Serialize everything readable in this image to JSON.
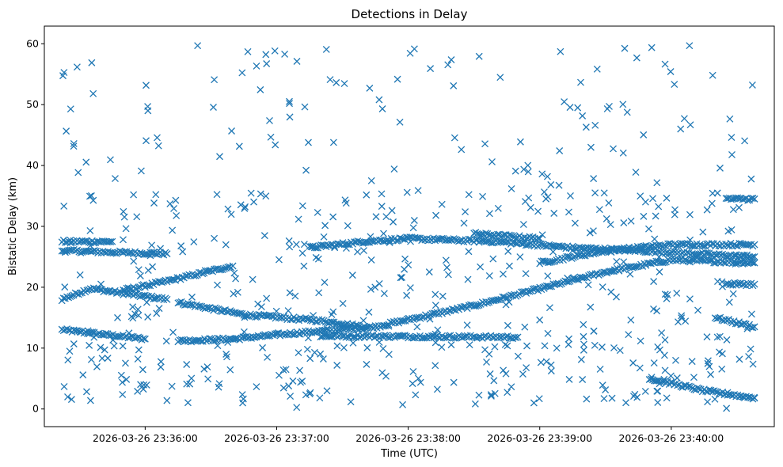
{
  "chart_data": {
    "type": "scatter",
    "title": "Detections in Delay",
    "xlabel": "Time (UTC)",
    "ylabel": "Bistatic Delay (km)",
    "marker": "x",
    "color": "#1f77b4",
    "grid": false,
    "legend": "none",
    "x_start": "2026-03-26 23:35:22",
    "x_end": "2026-03-26 23:40:38",
    "xlim": [
      "2026-03-26 23:35:14",
      "2026-03-26 23:40:47"
    ],
    "ylim": [
      -2.9,
      62.9
    ],
    "x_ticks": [
      {
        "time": "2026-03-26 23:36:00",
        "label": "2026-03-26 23:36:00"
      },
      {
        "time": "2026-03-26 23:37:00",
        "label": "2026-03-26 23:37:00"
      },
      {
        "time": "2026-03-26 23:38:00",
        "label": "2026-03-26 23:38:00"
      },
      {
        "time": "2026-03-26 23:39:00",
        "label": "2026-03-26 23:39:00"
      },
      {
        "time": "2026-03-26 23:40:00",
        "label": "2026-03-26 23:40:00"
      }
    ],
    "y_ticks": [
      0,
      10,
      20,
      30,
      40,
      50,
      60
    ],
    "tracks": [
      {
        "points": [
          [
            "2026-03-26 23:35:22",
            13.0
          ],
          [
            "2026-03-26 23:36:00",
            11.5
          ]
        ]
      },
      {
        "points": [
          [
            "2026-03-26 23:35:22",
            18.0
          ],
          [
            "2026-03-26 23:35:35",
            19.8
          ],
          [
            "2026-03-26 23:35:50",
            19.0
          ],
          [
            "2026-03-26 23:36:10",
            18.0
          ]
        ]
      },
      {
        "points": [
          [
            "2026-03-26 23:35:22",
            26.0
          ],
          [
            "2026-03-26 23:35:40",
            25.8
          ],
          [
            "2026-03-26 23:36:10",
            25.5
          ]
        ]
      },
      {
        "points": [
          [
            "2026-03-26 23:35:22",
            27.5
          ],
          [
            "2026-03-26 23:35:45",
            27.5
          ]
        ]
      },
      {
        "points": [
          [
            "2026-03-26 23:35:50",
            19.5
          ],
          [
            "2026-03-26 23:36:10",
            21.0
          ],
          [
            "2026-03-26 23:36:40",
            23.5
          ]
        ]
      },
      {
        "points": [
          [
            "2026-03-26 23:36:15",
            17.5
          ],
          [
            "2026-03-26 23:36:45",
            15.5
          ],
          [
            "2026-03-26 23:37:20",
            14.5
          ],
          [
            "2026-03-26 23:37:40",
            13.5
          ]
        ]
      },
      {
        "points": [
          [
            "2026-03-26 23:36:15",
            11.2
          ],
          [
            "2026-03-26 23:36:40",
            11.5
          ],
          [
            "2026-03-26 23:37:10",
            12.5
          ],
          [
            "2026-03-26 23:37:45",
            13.5
          ],
          [
            "2026-03-26 23:38:30",
            17.0
          ],
          [
            "2026-03-26 23:39:30",
            22.5
          ],
          [
            "2026-03-26 23:40:00",
            24.5
          ],
          [
            "2026-03-26 23:40:38",
            24.0
          ]
        ]
      },
      {
        "points": [
          [
            "2026-03-26 23:37:20",
            12.0
          ],
          [
            "2026-03-26 23:38:50",
            11.8
          ]
        ]
      },
      {
        "points": [
          [
            "2026-03-26 23:37:15",
            26.5
          ],
          [
            "2026-03-26 23:37:40",
            27.5
          ],
          [
            "2026-03-26 23:38:00",
            28.0
          ],
          [
            "2026-03-26 23:38:40",
            27.5
          ],
          [
            "2026-03-26 23:39:15",
            26.5
          ],
          [
            "2026-03-26 23:39:45",
            26.0
          ],
          [
            "2026-03-26 23:40:38",
            25.0
          ]
        ]
      },
      {
        "points": [
          [
            "2026-03-26 23:38:30",
            28.8
          ],
          [
            "2026-03-26 23:39:00",
            28.0
          ]
        ]
      },
      {
        "points": [
          [
            "2026-03-26 23:39:00",
            24.0
          ],
          [
            "2026-03-26 23:39:30",
            26.0
          ],
          [
            "2026-03-26 23:40:00",
            27.0
          ],
          [
            "2026-03-26 23:40:38",
            27.0
          ]
        ]
      },
      {
        "points": [
          [
            "2026-03-26 23:39:50",
            5.0
          ],
          [
            "2026-03-26 23:40:15",
            3.0
          ],
          [
            "2026-03-26 23:40:38",
            1.8
          ]
        ]
      },
      {
        "points": [
          [
            "2026-03-26 23:40:20",
            15.0
          ],
          [
            "2026-03-26 23:40:38",
            13.5
          ]
        ]
      },
      {
        "points": [
          [
            "2026-03-26 23:40:25",
            20.5
          ],
          [
            "2026-03-26 23:40:38",
            20.5
          ]
        ]
      },
      {
        "points": [
          [
            "2026-03-26 23:40:25",
            34.5
          ],
          [
            "2026-03-26 23:40:38",
            34.5
          ]
        ]
      }
    ],
    "background_detections": {
      "delay_range": [
        0,
        60
      ],
      "low_band": [
        1,
        13
      ],
      "mid_band": [
        13,
        36
      ]
    }
  }
}
